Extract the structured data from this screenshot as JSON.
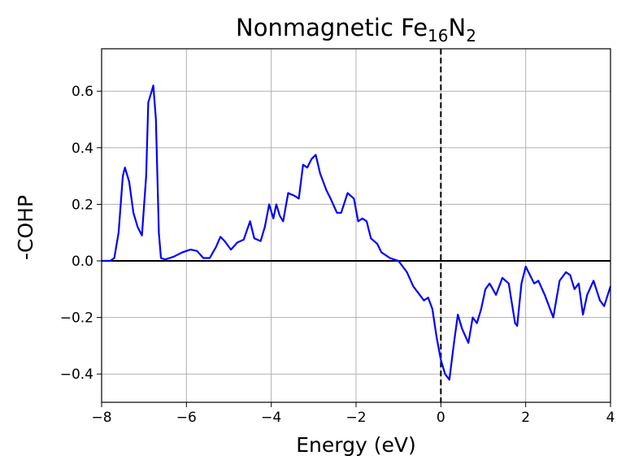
{
  "chart_data": {
    "type": "line",
    "title_parts": [
      "Nonmagnetic Fe",
      "16",
      "N",
      "2"
    ],
    "xlabel": "Energy (eV)",
    "ylabel": "-COHP",
    "x": [
      -8,
      -7.8,
      -7.7,
      -7.6,
      -7.5,
      -7.45,
      -7.35,
      -7.25,
      -7.15,
      -7.05,
      -6.95,
      -6.9,
      -6.82,
      -6.78,
      -6.72,
      -6.65,
      -6.6,
      -6.5,
      -6.3,
      -6.1,
      -5.9,
      -5.75,
      -5.6,
      -5.45,
      -5.3,
      -5.2,
      -5.1,
      -4.95,
      -4.8,
      -4.65,
      -4.5,
      -4.4,
      -4.25,
      -4.15,
      -4.05,
      -3.95,
      -3.88,
      -3.8,
      -3.72,
      -3.6,
      -3.45,
      -3.35,
      -3.25,
      -3.15,
      -3.05,
      -2.95,
      -2.85,
      -2.7,
      -2.6,
      -2.45,
      -2.35,
      -2.2,
      -2.05,
      -1.95,
      -1.85,
      -1.75,
      -1.65,
      -1.5,
      -1.4,
      -1.2,
      -1.0,
      -0.8,
      -0.65,
      -0.5,
      -0.4,
      -0.3,
      -0.2,
      -0.1,
      0,
      0.1,
      0.2,
      0.3,
      0.4,
      0.5,
      0.65,
      0.75,
      0.85,
      0.95,
      1.05,
      1.15,
      1.3,
      1.45,
      1.6,
      1.75,
      1.8,
      1.9,
      2.0,
      2.1,
      2.2,
      2.3,
      2.45,
      2.65,
      2.8,
      2.95,
      3.05,
      3.15,
      3.25,
      3.35,
      3.45,
      3.6,
      3.75,
      3.85,
      4.0
    ],
    "series": [
      {
        "color": "#0000ff",
        "values": [
          0,
          0,
          0.01,
          0.1,
          0.3,
          0.33,
          0.28,
          0.17,
          0.12,
          0.09,
          0.3,
          0.56,
          0.6,
          0.62,
          0.5,
          0.1,
          0.01,
          0.005,
          0.015,
          0.03,
          0.04,
          0.035,
          0.01,
          0.01,
          0.05,
          0.085,
          0.07,
          0.04,
          0.065,
          0.075,
          0.14,
          0.08,
          0.07,
          0.12,
          0.2,
          0.15,
          0.2,
          0.16,
          0.14,
          0.24,
          0.23,
          0.22,
          0.34,
          0.33,
          0.36,
          0.375,
          0.31,
          0.25,
          0.22,
          0.17,
          0.17,
          0.24,
          0.22,
          0.14,
          0.15,
          0.14,
          0.08,
          0.06,
          0.03,
          0.01,
          0.0,
          -0.04,
          -0.09,
          -0.12,
          -0.14,
          -0.13,
          -0.17,
          -0.27,
          -0.35,
          -0.4,
          -0.42,
          -0.3,
          -0.19,
          -0.24,
          -0.29,
          -0.2,
          -0.22,
          -0.17,
          -0.1,
          -0.08,
          -0.12,
          -0.06,
          -0.08,
          -0.22,
          -0.23,
          -0.08,
          -0.02,
          -0.05,
          -0.08,
          -0.07,
          -0.12,
          -0.2,
          -0.07,
          -0.04,
          -0.05,
          -0.1,
          -0.08,
          -0.19,
          -0.12,
          -0.07,
          -0.14,
          -0.16,
          -0.09
        ]
      }
    ],
    "xlim": [
      -8,
      4
    ],
    "ylim": [
      -0.5,
      0.75
    ],
    "xticks": [
      {
        "value": -8,
        "label": "−8"
      },
      {
        "value": -6,
        "label": "−6"
      },
      {
        "value": -4,
        "label": "−4"
      },
      {
        "value": -2,
        "label": "−2"
      },
      0,
      2,
      4
    ],
    "yticks": [
      {
        "value": -0.4,
        "label": "−0.4"
      },
      {
        "value": -0.2,
        "label": "−0.2"
      },
      {
        "value": 0,
        "label": "0.0"
      },
      {
        "value": 0.2,
        "label": "0.2"
      },
      {
        "value": 0.4,
        "label": "0.4"
      },
      {
        "value": 0.6,
        "label": "0.6"
      }
    ],
    "grid": true,
    "hline": 0,
    "vline": 0
  }
}
